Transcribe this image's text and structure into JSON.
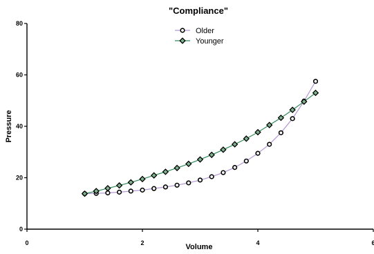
{
  "chart_data": {
    "type": "line",
    "title": "\"Compliance\"",
    "xlabel": "Volume",
    "ylabel": "Pressure",
    "xlim": [
      0,
      6
    ],
    "ylim": [
      0,
      80
    ],
    "x_ticks": [
      0,
      2,
      4,
      6
    ],
    "y_ticks": [
      0,
      20,
      40,
      60,
      80
    ],
    "grid": false,
    "legend_position": "top-center",
    "series": [
      {
        "name": "Older",
        "marker": "circle",
        "line_color": "#b497d6",
        "points": [
          [
            1.0,
            13.8
          ],
          [
            1.2,
            13.9
          ],
          [
            1.4,
            14.1
          ],
          [
            1.6,
            14.4
          ],
          [
            1.8,
            14.8
          ],
          [
            2.0,
            15.2
          ],
          [
            2.2,
            15.8
          ],
          [
            2.4,
            16.4
          ],
          [
            2.6,
            17.1
          ],
          [
            2.8,
            18.0
          ],
          [
            3.0,
            19.1
          ],
          [
            3.2,
            20.4
          ],
          [
            3.4,
            22.0
          ],
          [
            3.6,
            24.0
          ],
          [
            3.8,
            26.5
          ],
          [
            4.0,
            29.5
          ],
          [
            4.2,
            33.0
          ],
          [
            4.4,
            37.5
          ],
          [
            4.6,
            43.0
          ],
          [
            4.8,
            49.8
          ],
          [
            5.0,
            57.5
          ]
        ]
      },
      {
        "name": "Younger",
        "marker": "diamond",
        "line_color": "#2e8b57",
        "points": [
          [
            1.0,
            13.8
          ],
          [
            1.2,
            14.8
          ],
          [
            1.4,
            15.9
          ],
          [
            1.6,
            17.0
          ],
          [
            1.8,
            18.2
          ],
          [
            2.0,
            19.5
          ],
          [
            2.2,
            20.9
          ],
          [
            2.4,
            22.3
          ],
          [
            2.6,
            23.8
          ],
          [
            2.8,
            25.4
          ],
          [
            3.0,
            27.1
          ],
          [
            3.2,
            28.9
          ],
          [
            3.4,
            30.9
          ],
          [
            3.6,
            33.0
          ],
          [
            3.8,
            35.2
          ],
          [
            4.0,
            37.7
          ],
          [
            4.2,
            40.5
          ],
          [
            4.4,
            43.3
          ],
          [
            4.6,
            46.4
          ],
          [
            4.8,
            49.6
          ],
          [
            5.0,
            53.0
          ]
        ]
      }
    ]
  }
}
